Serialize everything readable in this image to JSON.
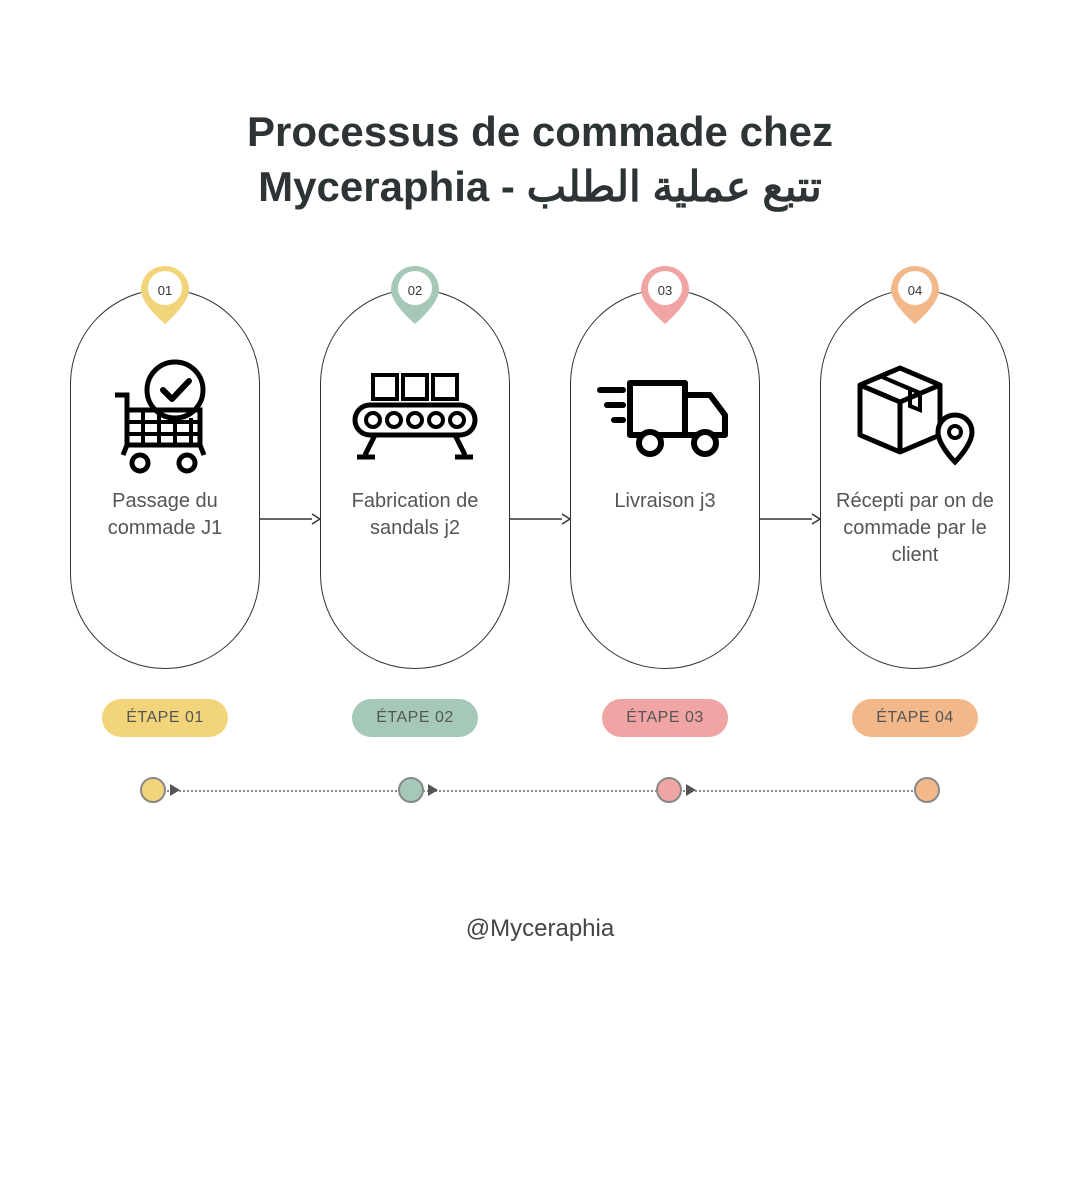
{
  "title": {
    "text": "Processus de commade chez\nMyceraphia - تتبع عملية الطلب",
    "fontsize": 42,
    "color": "#2e3436"
  },
  "footer": {
    "text": "@Myceraphia",
    "fontsize": 24,
    "color": "#444444"
  },
  "layout": {
    "background": "#ffffff",
    "pill_border": "#333333",
    "pill_width": 190,
    "pill_height": 380,
    "pill_radius": 100,
    "gap": 60,
    "caption_fontsize": 20,
    "label_fontsize": 16,
    "badge_fontsize": 13
  },
  "steps": [
    {
      "num": "01",
      "caption": "Passage du commade J1",
      "label": "ÉTAPE 01",
      "color": "#f2d57a",
      "icon": "cart-check"
    },
    {
      "num": "02",
      "caption": "Fabrication de sandals j2",
      "label": "ÉTAPE 02",
      "color": "#a5c8b8",
      "icon": "conveyor"
    },
    {
      "num": "03",
      "caption": "Livraison j3",
      "label": "ÉTAPE 03",
      "color": "#f0a4a4",
      "icon": "truck-fast"
    },
    {
      "num": "04",
      "caption": "Récepti par on de commade par le client",
      "label": "ÉTAPE 04",
      "color": "#f2b88a",
      "icon": "box-pin"
    }
  ],
  "timeline": {
    "line_color": "#888888",
    "dot_border": "#888888"
  }
}
